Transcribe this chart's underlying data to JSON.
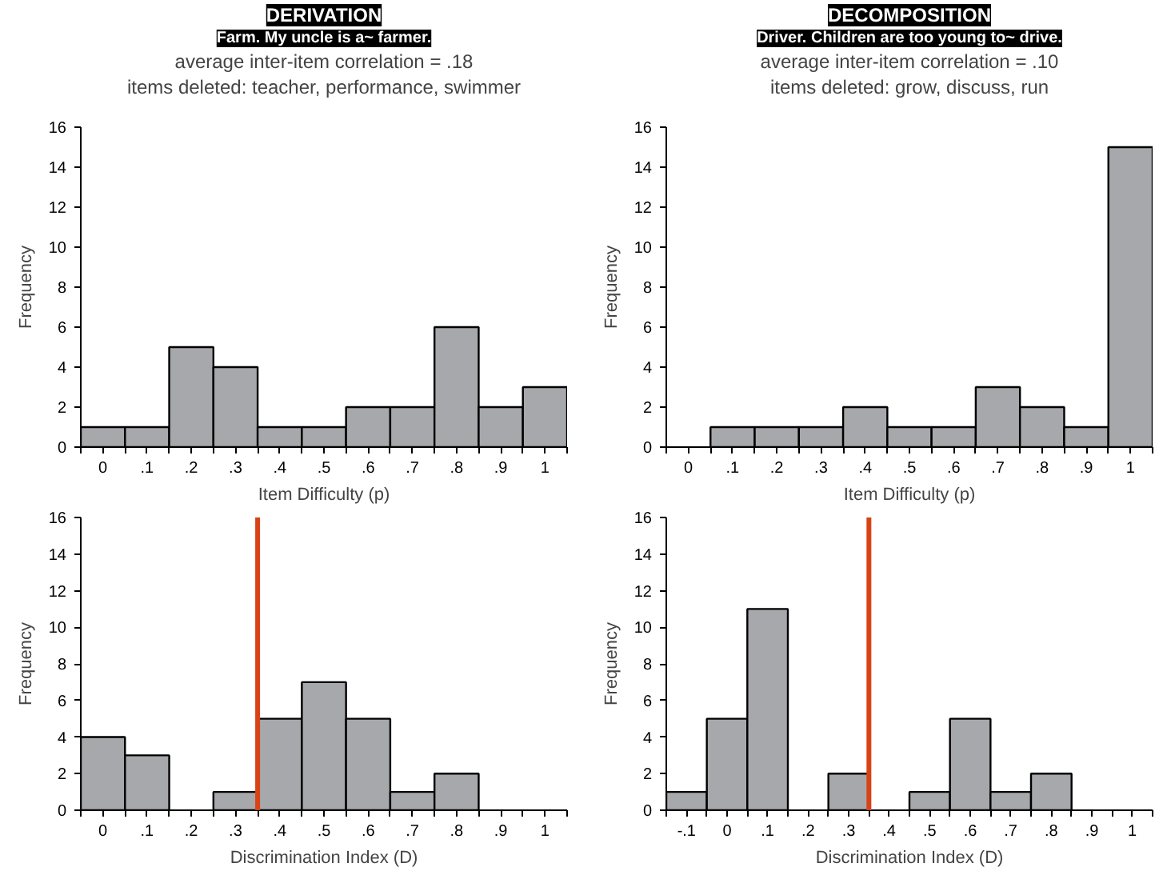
{
  "chart_data": [
    {
      "type": "histogram",
      "title": "DERIVATION",
      "subtitle": "Farm. My uncle is a~ farmer.",
      "annotations": [
        "average inter-item correlation = .18",
        "items deleted: teacher, performance, swimmer"
      ],
      "xlabel": "Item Difficulty (p)",
      "ylabel": "Frequency",
      "color": "#a6a8ab",
      "bins": [
        -0.05,
        0.05,
        0.15,
        0.25,
        0.35,
        0.45,
        0.55,
        0.65,
        0.75,
        0.85,
        0.95,
        1.05
      ],
      "values": [
        1,
        1,
        5,
        4,
        1,
        1,
        2,
        2,
        6,
        2,
        3
      ],
      "xlim": [
        -0.05,
        1.05
      ],
      "ylim": [
        0,
        16
      ],
      "yticks": [
        0,
        2,
        4,
        6,
        8,
        10,
        12,
        14,
        16
      ],
      "xticks": [
        {
          "value": -0.05,
          "label": null
        },
        {
          "value": 0,
          "label": "0"
        },
        {
          "value": 0.05,
          "label": null
        },
        {
          "value": 0.1,
          "label": ".1"
        },
        {
          "value": 0.15,
          "label": null
        },
        {
          "value": 0.2,
          "label": ".2"
        },
        {
          "value": 0.25,
          "label": null
        },
        {
          "value": 0.3,
          "label": ".3"
        },
        {
          "value": 0.35,
          "label": null
        },
        {
          "value": 0.4,
          "label": ".4"
        },
        {
          "value": 0.45,
          "label": null
        },
        {
          "value": 0.5,
          "label": ".5"
        },
        {
          "value": 0.55,
          "label": null
        },
        {
          "value": 0.6,
          "label": ".6"
        },
        {
          "value": 0.65,
          "label": null
        },
        {
          "value": 0.7,
          "label": ".7"
        },
        {
          "value": 0.75,
          "label": null
        },
        {
          "value": 0.8,
          "label": ".8"
        },
        {
          "value": 0.85,
          "label": null
        },
        {
          "value": 0.9,
          "label": ".9"
        },
        {
          "value": 0.95,
          "label": null
        },
        {
          "value": 1,
          "label": "1"
        },
        {
          "value": 1.05,
          "label": null
        }
      ],
      "grid": false
    },
    {
      "type": "histogram",
      "title": "DECOMPOSITION",
      "subtitle": "Driver. Children are too young to~ drive.",
      "annotations": [
        "average inter-item correlation = .10",
        "items deleted: grow, discuss, run"
      ],
      "xlabel": "Item Difficulty (p)",
      "ylabel": "Frequency",
      "color": "#a6a8ab",
      "bins": [
        -0.05,
        0.05,
        0.15,
        0.25,
        0.35,
        0.45,
        0.55,
        0.65,
        0.75,
        0.85,
        0.95,
        1.05
      ],
      "values": [
        0,
        1,
        1,
        1,
        2,
        1,
        1,
        3,
        2,
        1,
        15
      ],
      "xlim": [
        -0.05,
        1.05
      ],
      "ylim": [
        0,
        16
      ],
      "yticks": [
        0,
        2,
        4,
        6,
        8,
        10,
        12,
        14,
        16
      ],
      "xticks": [
        {
          "value": -0.05,
          "label": null
        },
        {
          "value": 0,
          "label": "0"
        },
        {
          "value": 0.05,
          "label": null
        },
        {
          "value": 0.1,
          "label": ".1"
        },
        {
          "value": 0.15,
          "label": null
        },
        {
          "value": 0.2,
          "label": ".2"
        },
        {
          "value": 0.25,
          "label": null
        },
        {
          "value": 0.3,
          "label": ".3"
        },
        {
          "value": 0.35,
          "label": null
        },
        {
          "value": 0.4,
          "label": ".4"
        },
        {
          "value": 0.45,
          "label": null
        },
        {
          "value": 0.5,
          "label": ".5"
        },
        {
          "value": 0.55,
          "label": null
        },
        {
          "value": 0.6,
          "label": ".6"
        },
        {
          "value": 0.65,
          "label": null
        },
        {
          "value": 0.7,
          "label": ".7"
        },
        {
          "value": 0.75,
          "label": null
        },
        {
          "value": 0.8,
          "label": ".8"
        },
        {
          "value": 0.85,
          "label": null
        },
        {
          "value": 0.9,
          "label": ".9"
        },
        {
          "value": 0.95,
          "label": null
        },
        {
          "value": 1,
          "label": "1"
        },
        {
          "value": 1.05,
          "label": null
        }
      ],
      "grid": false
    },
    {
      "type": "histogram",
      "xlabel": "Discrimination Index (D)",
      "ylabel": "Frequency",
      "color": "#a6a8ab",
      "bins": [
        -0.05,
        0.05,
        0.15,
        0.25,
        0.35,
        0.45,
        0.55,
        0.65,
        0.75,
        0.85,
        0.95,
        1.05
      ],
      "values": [
        4,
        3,
        0,
        1,
        5,
        7,
        5,
        1,
        2,
        0,
        0
      ],
      "xlim": [
        -0.05,
        1.05
      ],
      "ylim": [
        0,
        16
      ],
      "yticks": [
        0,
        2,
        4,
        6,
        8,
        10,
        12,
        14,
        16
      ],
      "xticks": [
        {
          "value": -0.05,
          "label": null
        },
        {
          "value": 0,
          "label": "0"
        },
        {
          "value": 0.05,
          "label": null
        },
        {
          "value": 0.1,
          "label": ".1"
        },
        {
          "value": 0.15,
          "label": null
        },
        {
          "value": 0.2,
          "label": ".2"
        },
        {
          "value": 0.25,
          "label": null
        },
        {
          "value": 0.3,
          "label": ".3"
        },
        {
          "value": 0.35,
          "label": null
        },
        {
          "value": 0.4,
          "label": ".4"
        },
        {
          "value": 0.45,
          "label": null
        },
        {
          "value": 0.5,
          "label": ".5"
        },
        {
          "value": 0.55,
          "label": null
        },
        {
          "value": 0.6,
          "label": ".6"
        },
        {
          "value": 0.65,
          "label": null
        },
        {
          "value": 0.7,
          "label": ".7"
        },
        {
          "value": 0.75,
          "label": null
        },
        {
          "value": 0.8,
          "label": ".8"
        },
        {
          "value": 0.85,
          "label": null
        },
        {
          "value": 0.9,
          "label": ".9"
        },
        {
          "value": 0.95,
          "label": null
        },
        {
          "value": 1,
          "label": "1"
        },
        {
          "value": 1.05,
          "label": null
        }
      ],
      "grid": false,
      "ref_lines": [
        {
          "axis": "x",
          "value": 0.35,
          "color": "#d84315"
        }
      ]
    },
    {
      "type": "histogram",
      "xlabel": "Discrimination Index (D)",
      "ylabel": "Frequency",
      "color": "#a6a8ab",
      "bins": [
        -0.15,
        -0.05,
        0.05,
        0.15,
        0.25,
        0.35,
        0.45,
        0.55,
        0.65,
        0.75,
        0.85,
        0.95,
        1.05
      ],
      "values": [
        1,
        5,
        11,
        0,
        2,
        0,
        1,
        5,
        1,
        2,
        0,
        0
      ],
      "xlim": [
        -0.15,
        1.05
      ],
      "ylim": [
        0,
        16
      ],
      "yticks": [
        0,
        2,
        4,
        6,
        8,
        10,
        12,
        14,
        16
      ],
      "xticks": [
        {
          "value": -0.15,
          "label": null
        },
        {
          "value": -0.1,
          "label": "-.1"
        },
        {
          "value": -0.05,
          "label": null
        },
        {
          "value": 0,
          "label": "0"
        },
        {
          "value": 0.05,
          "label": null
        },
        {
          "value": 0.1,
          "label": ".1"
        },
        {
          "value": 0.15,
          "label": null
        },
        {
          "value": 0.2,
          "label": ".2"
        },
        {
          "value": 0.25,
          "label": null
        },
        {
          "value": 0.3,
          "label": ".3"
        },
        {
          "value": 0.35,
          "label": null
        },
        {
          "value": 0.4,
          "label": ".4"
        },
        {
          "value": 0.45,
          "label": null
        },
        {
          "value": 0.5,
          "label": ".5"
        },
        {
          "value": 0.55,
          "label": null
        },
        {
          "value": 0.6,
          "label": ".6"
        },
        {
          "value": 0.65,
          "label": null
        },
        {
          "value": 0.7,
          "label": ".7"
        },
        {
          "value": 0.75,
          "label": null
        },
        {
          "value": 0.8,
          "label": ".8"
        },
        {
          "value": 0.85,
          "label": null
        },
        {
          "value": 0.9,
          "label": ".9"
        },
        {
          "value": 0.95,
          "label": null
        },
        {
          "value": 1,
          "label": "1"
        },
        {
          "value": 1.05,
          "label": null
        }
      ],
      "grid": false,
      "ref_lines": [
        {
          "axis": "x",
          "value": 0.35,
          "color": "#d84315"
        }
      ]
    }
  ]
}
